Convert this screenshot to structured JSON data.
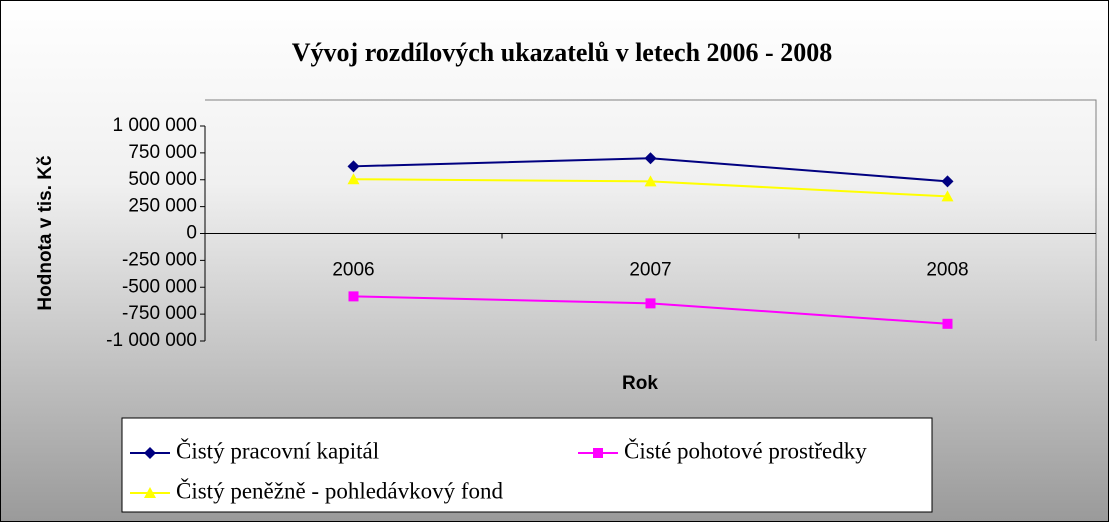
{
  "chart_data": {
    "type": "line",
    "title": "Vývoj rozdílových ukazatelů v letech 2006 - 2008",
    "x_label": "Rok",
    "y_label": "Hodnota v tis. Kč",
    "categories": [
      "2006",
      "2007",
      "2008"
    ],
    "series": [
      {
        "name": "Čistý pracovní kapitál",
        "color": "#000080",
        "marker": "diamond",
        "values": [
          625000,
          700000,
          485000
        ]
      },
      {
        "name": "Čisté pohotové prostředky",
        "color": "#ff00ff",
        "marker": "square",
        "values": [
          -585000,
          -650000,
          -840000
        ]
      },
      {
        "name": "Čistý peněžně - pohledávkový fond",
        "color": "#ffff00",
        "marker": "triangle",
        "values": [
          505000,
          485000,
          345000
        ]
      }
    ],
    "ylim": [
      -1000000,
      1000000
    ],
    "yticks": [
      {
        "value": 1000000,
        "label": "1 000 000"
      },
      {
        "value": 750000,
        "label": "750 000"
      },
      {
        "value": 500000,
        "label": "500 000"
      },
      {
        "value": 250000,
        "label": "250 000"
      },
      0,
      {
        "value": -250000,
        "label": "-250 000"
      },
      {
        "value": -500000,
        "label": "-500 000"
      },
      {
        "value": -750000,
        "label": "-750 000"
      },
      {
        "value": -1000000,
        "label": "-1 000 000"
      }
    ],
    "grid": false
  }
}
